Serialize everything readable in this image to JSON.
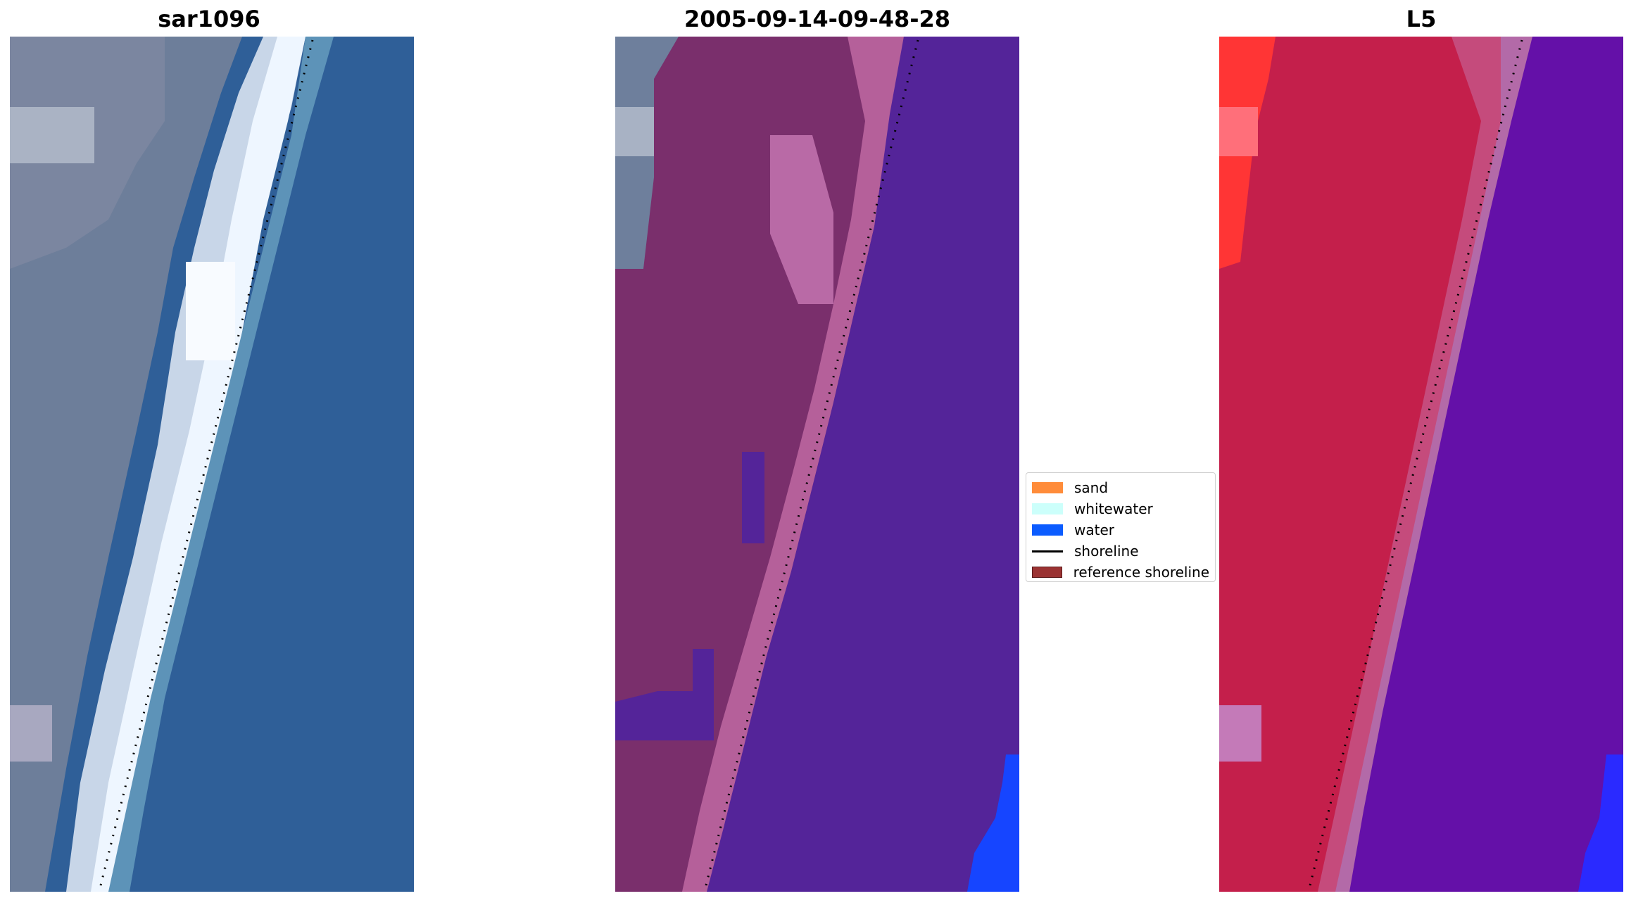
{
  "panels": [
    {
      "title": "sar1096"
    },
    {
      "title": "2005-09-14-09-48-28"
    },
    {
      "title": "L5"
    }
  ],
  "legend": {
    "items": [
      {
        "label": "sand",
        "kind": "patch",
        "color": "#ff8c3a"
      },
      {
        "label": "whitewater",
        "kind": "patch",
        "color": "#ccfffb"
      },
      {
        "label": "water",
        "kind": "patch",
        "color": "#0b5cff"
      },
      {
        "label": "shoreline",
        "kind": "line",
        "color": "#000000"
      },
      {
        "label": "reference shoreline",
        "kind": "patch",
        "color": "#9b3333"
      }
    ]
  },
  "colors": {
    "rgb_land": "#6e7f9c",
    "rgb_beach": "#e6f2ff",
    "rgb_water": "#2d5f98",
    "class_land": "#7a2f6c",
    "class_beach_highlight": "#b5609a",
    "class_water": "#542499",
    "class_water_edge": "#1645ff",
    "false_land": "#c41f4b",
    "false_bright": "#ff3535",
    "false_water": "#6410a8",
    "false_water_edge": "#2a2aff"
  }
}
